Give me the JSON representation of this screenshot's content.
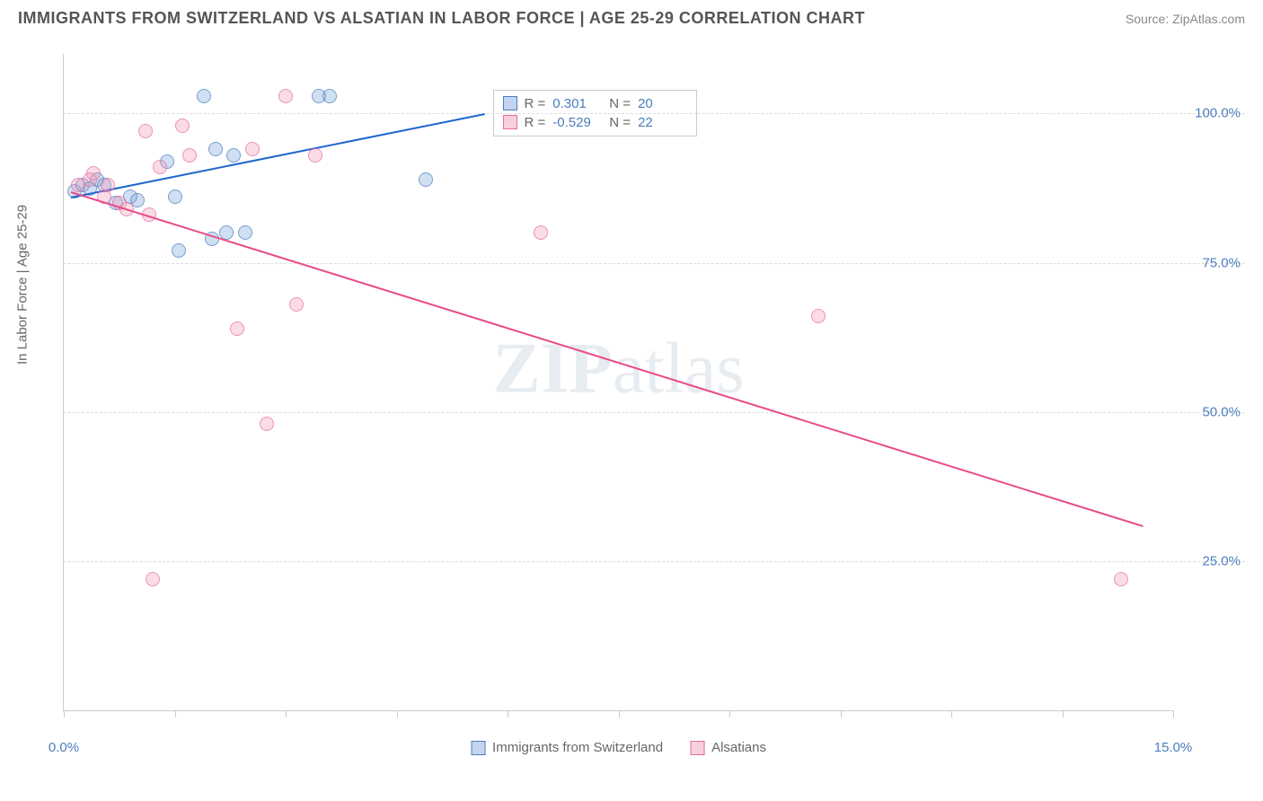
{
  "header": {
    "title": "IMMIGRANTS FROM SWITZERLAND VS ALSATIAN IN LABOR FORCE | AGE 25-29 CORRELATION CHART",
    "source": "Source: ZipAtlas.com"
  },
  "chart": {
    "type": "scatter",
    "y_axis_title": "In Labor Force | Age 25-29",
    "xlim": [
      0,
      15
    ],
    "ylim": [
      0,
      110
    ],
    "x_ticks_minor": [
      0,
      1.5,
      3,
      4.5,
      6,
      7.5,
      9,
      10.5,
      12,
      13.5,
      15
    ],
    "x_labels": [
      {
        "val": 0,
        "text": "0.0%"
      },
      {
        "val": 15,
        "text": "15.0%"
      }
    ],
    "y_gridlines": [
      25,
      50,
      75,
      100
    ],
    "y_labels": [
      {
        "val": 25,
        "text": "25.0%"
      },
      {
        "val": 50,
        "text": "50.0%"
      },
      {
        "val": 75,
        "text": "75.0%"
      },
      {
        "val": 100,
        "text": "100.0%"
      }
    ],
    "background_color": "#ffffff",
    "grid_color": "#dddddd",
    "series": [
      {
        "name": "Immigrants from Switzerland",
        "fill": "rgba(120,160,220,0.45)",
        "stroke": "#4a7ebb",
        "line_color": "#1f66d0",
        "r_value": "0.301",
        "n_value": "20",
        "trend": {
          "x1": 0.1,
          "y1": 86,
          "x2": 5.7,
          "y2": 100
        },
        "points": [
          {
            "x": 0.15,
            "y": 87
          },
          {
            "x": 0.25,
            "y": 88
          },
          {
            "x": 0.35,
            "y": 87.5
          },
          {
            "x": 0.45,
            "y": 89
          },
          {
            "x": 0.55,
            "y": 88
          },
          {
            "x": 0.7,
            "y": 85
          },
          {
            "x": 0.9,
            "y": 86
          },
          {
            "x": 1.0,
            "y": 85.5
          },
          {
            "x": 1.4,
            "y": 92
          },
          {
            "x": 1.5,
            "y": 86
          },
          {
            "x": 1.55,
            "y": 77
          },
          {
            "x": 1.9,
            "y": 103
          },
          {
            "x": 2.05,
            "y": 94
          },
          {
            "x": 2.0,
            "y": 79
          },
          {
            "x": 2.2,
            "y": 80
          },
          {
            "x": 2.3,
            "y": 93
          },
          {
            "x": 2.45,
            "y": 80
          },
          {
            "x": 3.45,
            "y": 103
          },
          {
            "x": 3.6,
            "y": 103
          },
          {
            "x": 4.9,
            "y": 89
          }
        ]
      },
      {
        "name": "Alsatians",
        "fill": "rgba(240,150,180,0.45)",
        "stroke": "#e76ba2",
        "line_color": "#e94b8a",
        "r_value": "-0.529",
        "n_value": "22",
        "trend": {
          "x1": 0.1,
          "y1": 87,
          "x2": 14.6,
          "y2": 31
        },
        "points": [
          {
            "x": 0.2,
            "y": 88
          },
          {
            "x": 0.35,
            "y": 89
          },
          {
            "x": 0.4,
            "y": 90
          },
          {
            "x": 0.55,
            "y": 86
          },
          {
            "x": 0.6,
            "y": 88
          },
          {
            "x": 0.75,
            "y": 85
          },
          {
            "x": 0.85,
            "y": 84
          },
          {
            "x": 1.1,
            "y": 97
          },
          {
            "x": 1.15,
            "y": 83
          },
          {
            "x": 1.2,
            "y": 22
          },
          {
            "x": 1.3,
            "y": 91
          },
          {
            "x": 1.6,
            "y": 98
          },
          {
            "x": 1.7,
            "y": 93
          },
          {
            "x": 2.35,
            "y": 64
          },
          {
            "x": 2.55,
            "y": 94
          },
          {
            "x": 2.75,
            "y": 48
          },
          {
            "x": 3.0,
            "y": 103
          },
          {
            "x": 3.15,
            "y": 68
          },
          {
            "x": 3.4,
            "y": 93
          },
          {
            "x": 6.45,
            "y": 80
          },
          {
            "x": 10.2,
            "y": 66
          },
          {
            "x": 14.3,
            "y": 22
          }
        ]
      }
    ],
    "watermark": {
      "bold": "ZIP",
      "thin": "atlas"
    }
  },
  "legend": {
    "item1": "Immigrants from Switzerland",
    "item2": "Alsatians"
  }
}
